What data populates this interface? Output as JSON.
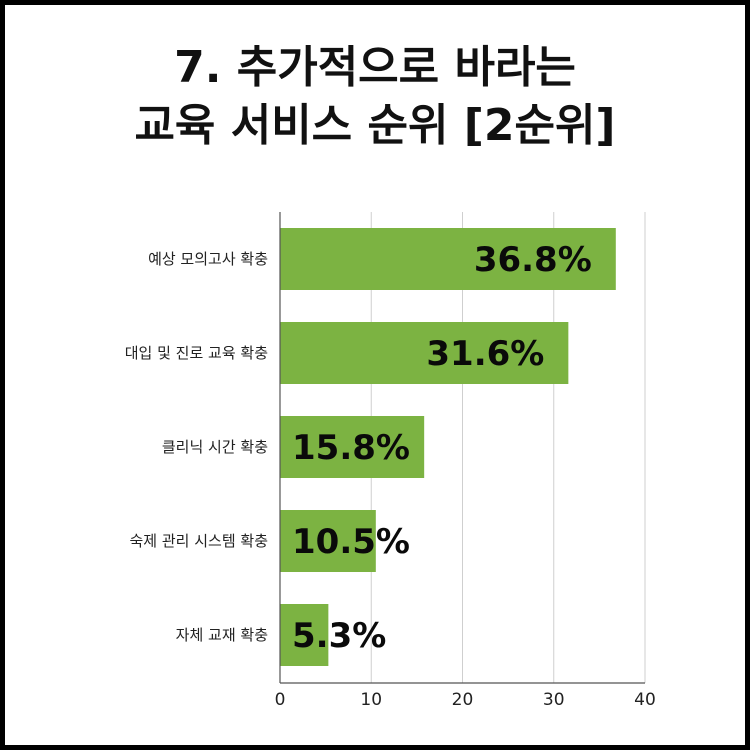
{
  "title_lines": [
    "7. 추가적으로 바라는",
    "교육 서비스 순위 [2순위]"
  ],
  "chart_data": {
    "type": "bar",
    "orientation": "horizontal",
    "categories": [
      "예상 모의고사 확충",
      "대입 및 진로 교육 확충",
      "클리닉 시간 확충",
      "숙제 관리 시스템 확충",
      "자체 교재 확충"
    ],
    "values": [
      36.8,
      31.6,
      15.8,
      10.5,
      5.3
    ],
    "data_labels": [
      "36.8%",
      "31.6%",
      "15.8%",
      "10.5%",
      "5.3%"
    ],
    "xlim": [
      0,
      40
    ],
    "xticks": [
      "0",
      "10",
      "20",
      "30",
      "40"
    ],
    "grid": true,
    "bar_color": "#7cb342"
  }
}
